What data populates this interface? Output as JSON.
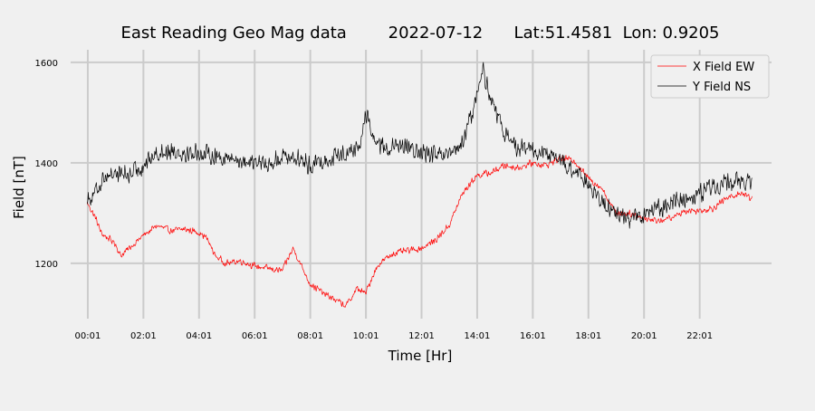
{
  "colors": {
    "background": "#f0f0f0",
    "grid": "#cbcbcb",
    "x_series": "#ff0000",
    "y_series": "#000000",
    "legend_border": "#cccccc"
  },
  "chart_data": {
    "type": "line",
    "title": "East Reading Geo Mag data        2022-07-12      Lat:51.4581  Lon: 0.9205",
    "xlabel": "Time  [Hr]",
    "ylabel": "Field  [nT]",
    "xlim": [
      -0.6,
      24.6
    ],
    "ylim": [
      1090,
      1625
    ],
    "x_ticks": [
      0.0167,
      2.0167,
      4.0167,
      6.0167,
      8.0167,
      10.0167,
      12.0167,
      14.0167,
      16.0167,
      18.0167,
      20.0167,
      22.0167
    ],
    "x_tick_labels": [
      "00:01",
      "02:01",
      "04:01",
      "06:01",
      "08:01",
      "10:01",
      "12:01",
      "14:01",
      "16:01",
      "18:01",
      "20:01",
      "22:01"
    ],
    "y_ticks": [
      1200,
      1400,
      1600
    ],
    "y_tick_labels": [
      "1200",
      "1400",
      "1600"
    ],
    "grid": true,
    "legend": "top-right",
    "series": [
      {
        "name": "X Field EW",
        "color": "#ff0000",
        "noise": 8,
        "x": [
          0.0,
          0.3,
          0.5,
          1.0,
          1.2,
          1.5,
          2.0,
          2.5,
          3.0,
          3.5,
          4.0,
          4.3,
          4.6,
          5.0,
          5.5,
          6.0,
          6.5,
          7.0,
          7.4,
          7.7,
          8.0,
          8.5,
          9.0,
          9.3,
          9.7,
          10.0,
          10.3,
          10.5,
          11.0,
          11.5,
          12.0,
          12.5,
          13.0,
          13.5,
          14.0,
          14.5,
          15.0,
          15.5,
          16.0,
          16.5,
          17.0,
          17.5,
          18.0,
          18.5,
          19.0,
          19.5,
          20.0,
          20.5,
          21.0,
          21.5,
          22.0,
          22.5,
          23.0,
          23.5,
          23.9
        ],
        "y": [
          1320,
          1290,
          1260,
          1240,
          1215,
          1230,
          1255,
          1275,
          1265,
          1268,
          1262,
          1250,
          1215,
          1200,
          1205,
          1195,
          1190,
          1185,
          1230,
          1195,
          1160,
          1140,
          1125,
          1115,
          1150,
          1140,
          1180,
          1200,
          1220,
          1225,
          1230,
          1245,
          1275,
          1340,
          1375,
          1380,
          1395,
          1390,
          1400,
          1395,
          1410,
          1405,
          1370,
          1350,
          1300,
          1300,
          1290,
          1285,
          1290,
          1305,
          1305,
          1310,
          1330,
          1340,
          1330
        ]
      },
      {
        "name": "Y Field NS",
        "color": "#000000",
        "noise": 22,
        "x": [
          0.0,
          0.3,
          0.6,
          1.0,
          1.5,
          2.0,
          2.5,
          3.0,
          3.5,
          4.0,
          4.5,
          5.0,
          5.5,
          6.0,
          6.5,
          7.0,
          7.5,
          8.0,
          8.5,
          9.0,
          9.5,
          9.8,
          10.0,
          10.3,
          10.6,
          11.0,
          11.5,
          12.0,
          12.5,
          13.0,
          13.5,
          14.0,
          14.2,
          14.5,
          14.8,
          15.0,
          15.5,
          16.0,
          16.5,
          17.0,
          17.5,
          18.0,
          18.5,
          19.0,
          19.5,
          20.0,
          20.5,
          21.0,
          21.5,
          22.0,
          22.5,
          23.0,
          23.5,
          23.9
        ],
        "y": [
          1330,
          1340,
          1375,
          1380,
          1375,
          1395,
          1420,
          1425,
          1420,
          1420,
          1415,
          1410,
          1405,
          1400,
          1395,
          1415,
          1410,
          1395,
          1405,
          1415,
          1425,
          1430,
          1500,
          1450,
          1430,
          1430,
          1430,
          1420,
          1415,
          1410,
          1440,
          1530,
          1590,
          1530,
          1480,
          1460,
          1430,
          1425,
          1415,
          1405,
          1380,
          1360,
          1320,
          1300,
          1290,
          1295,
          1310,
          1320,
          1330,
          1340,
          1355,
          1360,
          1365,
          1360
        ]
      }
    ]
  }
}
